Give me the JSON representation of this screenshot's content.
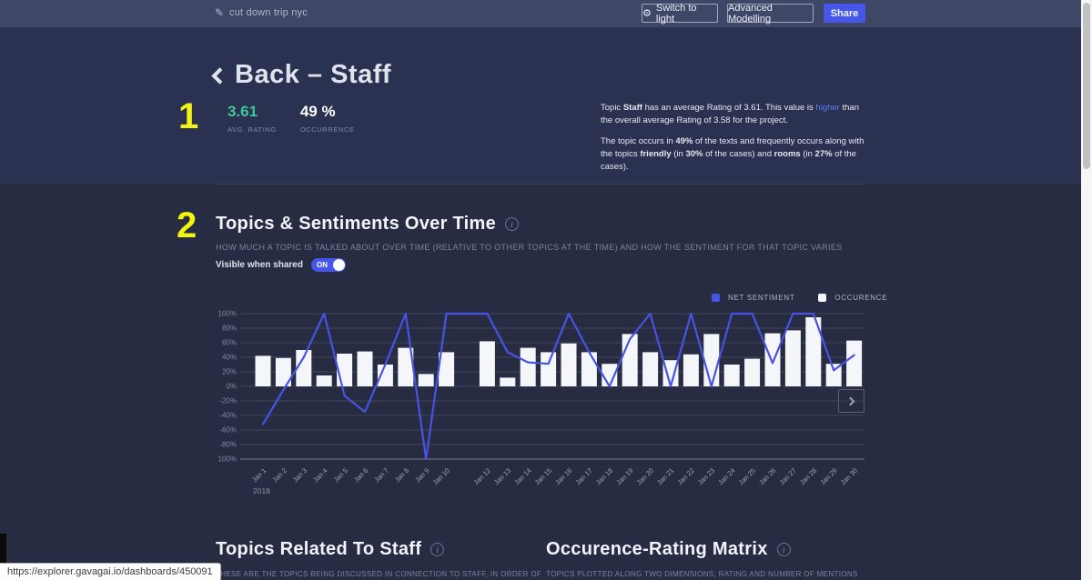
{
  "topbar": {
    "project_name": "cut down trip nyc",
    "switch_to_light_label": "Switch to light",
    "advanced_modelling_label": "Advanced Modelling",
    "share_label": "Share"
  },
  "header": {
    "back_label": "Back",
    "dash": "–",
    "topic": "Staff",
    "section_number": "1",
    "stats": [
      {
        "value": "3.61",
        "label": "AVG. RATING",
        "color": "#41c79c"
      },
      {
        "value": "49 %",
        "label": "OCCURRENCE",
        "color": "#ffffff"
      }
    ],
    "summary_para1": [
      {
        "t": "Topic "
      },
      {
        "t": "Staff",
        "b": true
      },
      {
        "t": " has an average Rating of 3.61. This value is "
      },
      {
        "t": "higher",
        "c": "#5b7df0"
      },
      {
        "t": " than the overall average Rating of 3.58 for the project."
      }
    ],
    "summary_para2": [
      {
        "t": "The topic occurs in "
      },
      {
        "t": "49%",
        "b": true
      },
      {
        "t": " of the texts and frequently occurs along with the topics "
      },
      {
        "t": "friendly",
        "b": true
      },
      {
        "t": " (in "
      },
      {
        "t": "30%",
        "b": true
      },
      {
        "t": " of the cases) and "
      },
      {
        "t": "rooms",
        "b": true
      },
      {
        "t": " (in "
      },
      {
        "t": "27%",
        "b": true
      },
      {
        "t": " of the cases)."
      }
    ]
  },
  "sentiment_section": {
    "section_number": "2",
    "title": "Topics & Sentiments Over Time",
    "subtitle": "HOW MUCH A TOPIC IS TALKED ABOUT OVER TIME (RELATIVE TO OTHER TOPICS AT THE TIME) AND HOW THE SENTIMENT FOR THAT TOPIC VARIES",
    "toggle_label": "Visible when shared",
    "toggle_state": "ON",
    "legend": [
      {
        "label": "NET SENTIMENT",
        "color": "#4753e4"
      },
      {
        "label": "OCCURENCE",
        "color": "#f4f6fa"
      }
    ]
  },
  "chart_data": {
    "type": "bar+line",
    "title": "Topics & Sentiments Over Time",
    "x_year": "2018",
    "ylim": [
      -100,
      100
    ],
    "y_ticks": [
      100,
      80,
      60,
      40,
      20,
      0,
      -20,
      -40,
      -60,
      -80,
      -100
    ],
    "y_tick_suffix": "%",
    "grid": true,
    "legend_position": "top-right",
    "note": "No bar or x label for Jan 11 (data gap); sentiment line stays flat at 100 across the gap.",
    "categories": [
      "Jan 1",
      "Jan 2",
      "Jan 3",
      "Jan 4",
      "Jan 5",
      "Jan 6",
      "Jan 7",
      "Jan 8",
      "Jan 9",
      "Jan 10",
      "",
      "Jan 12",
      "Jan 13",
      "Jan 14",
      "Jan 15",
      "Jan 16",
      "Jan 17",
      "Jan 18",
      "Jan 19",
      "Jan 20",
      "Jan 21",
      "Jan 22",
      "Jan 23",
      "Jan 24",
      "Jan 25",
      "Jan 26",
      "Jan 27",
      "Jan 28",
      "Jan 29",
      "Jan 30"
    ],
    "series": [
      {
        "name": "NET SENTIMENT",
        "type": "line",
        "color": "#4753e4",
        "values": [
          -52,
          -5,
          40,
          100,
          -13,
          -35,
          30,
          100,
          -100,
          100,
          100,
          100,
          47,
          33,
          31,
          100,
          47,
          0,
          65,
          100,
          0,
          100,
          0,
          100,
          100,
          32,
          100,
          100,
          22,
          43
        ]
      },
      {
        "name": "OCCURENCE",
        "type": "bar",
        "color": "#f4f6fa",
        "values": [
          42,
          39,
          50,
          15,
          45,
          48,
          30,
          53,
          17,
          47,
          null,
          62,
          12,
          53,
          47,
          59,
          47,
          31,
          72,
          47,
          36,
          44,
          72,
          30,
          38,
          73,
          77,
          95,
          31,
          63
        ]
      }
    ]
  },
  "bottom_sections": [
    {
      "title": "Topics Related To Staff",
      "subtitle": "THESE ARE THE TOPICS BEING DISCUSSED IN CONNECTION TO STAFF, IN ORDER OF"
    },
    {
      "title": "Occurence-Rating Matrix",
      "subtitle": "TOPICS PLOTTED ALONG TWO DIMENSIONS, RATING AND NUMBER OF MENTIONS"
    }
  ],
  "statusbar": {
    "url": "https://explorer.gavagai.io/dashboards/450091"
  },
  "colors": {
    "topbar_bg": "#3f4766",
    "body_bg": "#272c42",
    "hero_bg": "#2b3150",
    "accent_blue": "#4657e8",
    "accent_green": "#41c79c",
    "accent_yellow": "#f3f412"
  }
}
